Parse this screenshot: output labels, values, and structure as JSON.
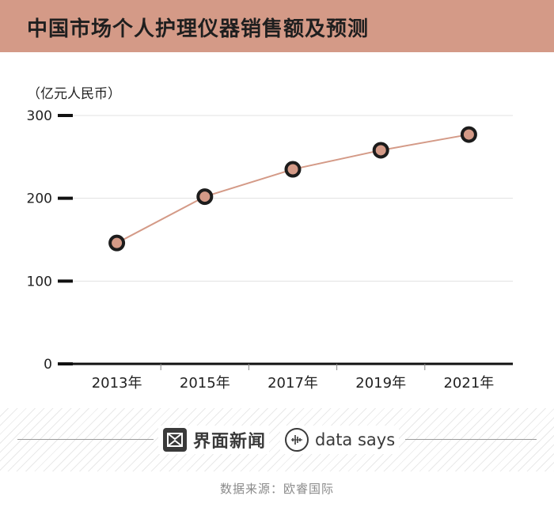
{
  "header": {
    "title": "中国市场个人护理仪器销售额及预测"
  },
  "chart_data": {
    "type": "line",
    "title": "中国市场个人护理仪器销售额及预测",
    "ylabel": "（亿元人民币）",
    "xlabel": "",
    "categories": [
      "2013年",
      "2015年",
      "2017年",
      "2019年",
      "2021年"
    ],
    "values": [
      146,
      202,
      235,
      258,
      277
    ],
    "ylim": [
      0,
      300
    ],
    "yticks": [
      0,
      100,
      200,
      300
    ],
    "grid": true,
    "colors": {
      "line": "#d49a87",
      "marker_fill": "#d49a87",
      "marker_edge": "#1c1c1c",
      "header": "#d49a87"
    }
  },
  "footer": {
    "logo_jiemian": "界面新闻",
    "logo_datasays": "data says",
    "source": "数据来源：欧睿国际"
  }
}
